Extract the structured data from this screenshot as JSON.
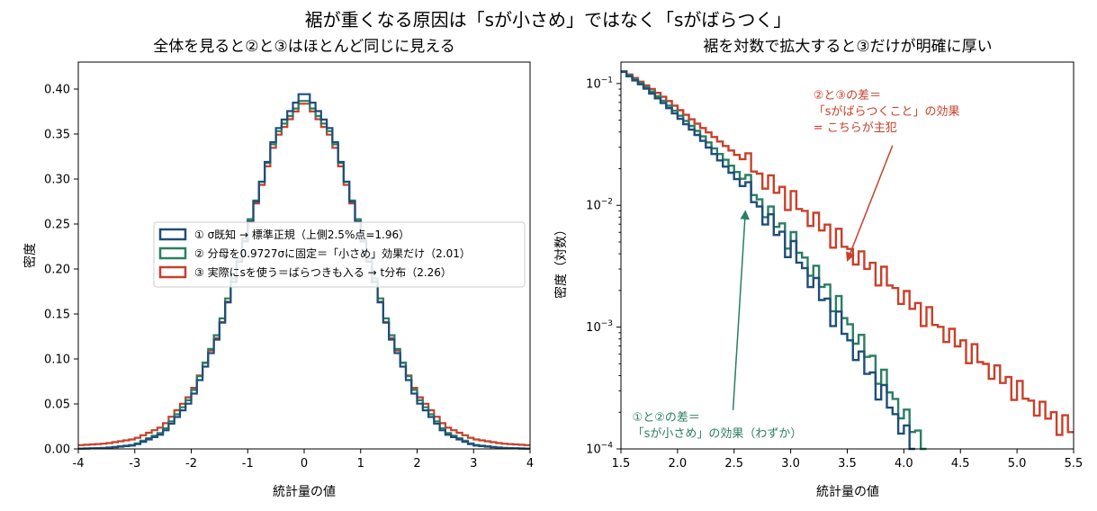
{
  "figure": {
    "suptitle": "裾が重くなる原因は「sが小さめ」ではなく「sがばらつく」"
  },
  "colors": {
    "known": "#1f4e79",
    "fixed": "#2a7f62",
    "tdist": "#c8402a"
  },
  "chart_data": [
    {
      "type": "area",
      "render": "step-histogram",
      "title": "全体を見ると②と③はほとんど同じに見える",
      "xlabel": "統計量の値",
      "ylabel": "密度",
      "xlim": [
        -4,
        4
      ],
      "ylim": [
        0,
        0.43
      ],
      "grid": false,
      "x_ticks": [
        "-4",
        "-3",
        "-2",
        "-1",
        "0",
        "1",
        "2",
        "3",
        "4"
      ],
      "y_ticks": [
        "0.00",
        "0.05",
        "0.10",
        "0.15",
        "0.20",
        "0.25",
        "0.30",
        "0.35",
        "0.40"
      ],
      "x": [
        -4.0,
        -3.5,
        -3.0,
        -2.5,
        -2.0,
        -1.5,
        -1.0,
        -0.5,
        0.0,
        0.5,
        1.0,
        1.5,
        2.0,
        2.5,
        3.0,
        3.5,
        4.0
      ],
      "legend_position": "center",
      "series": [
        {
          "name": "① σ既知 → 標準正規（上側2.5%点=1.96）",
          "color": "#1f4e79",
          "values": [
            0.0002,
            0.001,
            0.004,
            0.017,
            0.054,
            0.129,
            0.242,
            0.352,
            0.399,
            0.352,
            0.242,
            0.129,
            0.054,
            0.017,
            0.004,
            0.001,
            0.0002
          ]
        },
        {
          "name": "② 分母を0.9727σに固定＝「小さめ」効果だけ（2.01）",
          "color": "#2a7f62",
          "values": [
            0.0003,
            0.0012,
            0.0048,
            0.019,
            0.058,
            0.134,
            0.245,
            0.349,
            0.391,
            0.349,
            0.245,
            0.134,
            0.058,
            0.019,
            0.0048,
            0.0012,
            0.0003
          ]
        },
        {
          "name": "③ 実際にsを使う＝ばらつきも入る → t分布（2.26）",
          "color": "#c8402a",
          "values": [
            0.004,
            0.006,
            0.011,
            0.025,
            0.061,
            0.13,
            0.242,
            0.345,
            0.388,
            0.345,
            0.242,
            0.13,
            0.061,
            0.025,
            0.011,
            0.006,
            0.004
          ]
        }
      ]
    },
    {
      "type": "line",
      "render": "step-histogram",
      "title": "裾を対数で拡大すると③だけが明確に厚い",
      "xlabel": "統計量の値",
      "ylabel": "密度（対数）",
      "xlim": [
        1.5,
        5.5
      ],
      "ylim": [
        0.0001,
        0.15
      ],
      "yscale": "log",
      "grid": false,
      "x_ticks": [
        "1.5",
        "2.0",
        "2.5",
        "3.0",
        "3.5",
        "4.0",
        "4.5",
        "5.0",
        "5.5"
      ],
      "y_ticks": [
        "10^-4",
        "10^-3",
        "10^-2",
        "10^-1"
      ],
      "series": [
        {
          "name": "①",
          "color": "#1f4e79",
          "x": [
            1.5,
            1.6,
            1.7,
            1.8,
            1.9,
            2.0,
            2.1,
            2.2,
            2.3,
            2.4,
            2.5,
            2.6,
            2.7,
            2.8,
            2.9,
            3.0,
            3.1,
            3.2,
            3.3,
            3.4,
            3.5,
            3.6,
            3.7,
            3.8,
            3.9,
            4.0,
            4.1
          ],
          "values": [
            0.13,
            0.11,
            0.095,
            0.079,
            0.066,
            0.054,
            0.044,
            0.036,
            0.028,
            0.022,
            0.0175,
            0.0135,
            0.0105,
            0.0079,
            0.0059,
            0.0045,
            0.0033,
            0.0024,
            0.0017,
            0.0012,
            0.00085,
            0.0006,
            0.00042,
            0.0003,
            0.00021,
            0.00015,
            0.0001
          ]
        },
        {
          "name": "②",
          "color": "#2a7f62",
          "x": [
            1.5,
            1.6,
            1.7,
            1.8,
            1.9,
            2.0,
            2.1,
            2.2,
            2.3,
            2.4,
            2.5,
            2.6,
            2.7,
            2.8,
            2.9,
            3.0,
            3.1,
            3.2,
            3.3,
            3.4,
            3.5,
            3.6,
            3.7,
            3.8,
            3.9,
            4.0,
            4.1,
            4.2
          ],
          "values": [
            0.13,
            0.112,
            0.097,
            0.082,
            0.069,
            0.057,
            0.047,
            0.039,
            0.031,
            0.025,
            0.02,
            0.0155,
            0.012,
            0.0091,
            0.0069,
            0.0053,
            0.004,
            0.003,
            0.0022,
            0.0016,
            0.00115,
            0.00082,
            0.00058,
            0.0004,
            0.00028,
            0.0002,
            0.00014,
            0.0001
          ]
        },
        {
          "name": "③",
          "color": "#c8402a",
          "x": [
            1.5,
            1.6,
            1.7,
            1.8,
            1.9,
            2.0,
            2.1,
            2.2,
            2.3,
            2.4,
            2.5,
            2.6,
            2.7,
            2.8,
            2.9,
            3.0,
            3.1,
            3.2,
            3.3,
            3.4,
            3.5,
            3.6,
            3.7,
            3.8,
            3.9,
            4.0,
            4.1,
            4.2,
            4.3,
            4.4,
            4.5,
            4.6,
            4.7,
            4.8,
            4.9,
            5.0,
            5.1,
            5.2,
            5.3,
            5.4,
            5.5
          ],
          "values": [
            0.13,
            0.115,
            0.1,
            0.087,
            0.075,
            0.063,
            0.053,
            0.045,
            0.038,
            0.032,
            0.027,
            0.023,
            0.019,
            0.016,
            0.0135,
            0.0112,
            0.0094,
            0.0079,
            0.0066,
            0.0055,
            0.0046,
            0.0038,
            0.0032,
            0.0027,
            0.0022,
            0.0018,
            0.0015,
            0.00125,
            0.00105,
            0.00088,
            0.00074,
            0.00062,
            0.00052,
            0.00044,
            0.00037,
            0.00031,
            0.00026,
            0.00022,
            0.00019,
            0.00016,
            0.00014
          ]
        }
      ],
      "annotations": [
        {
          "text": "②と③の差＝\n「sがばらつくこと」の効果\n= こちらが主犯",
          "color": "#c8402a",
          "target_x": 3.5,
          "target_y": 0.0035,
          "text_x": 3.2,
          "text_y": 0.075
        },
        {
          "text": "①と②の差＝\n「sが小さめ」の効果（わずか）",
          "color": "#2a7f62",
          "target_x": 2.6,
          "target_y": 0.009,
          "text_x": 1.6,
          "text_y": 0.00017
        }
      ]
    }
  ]
}
